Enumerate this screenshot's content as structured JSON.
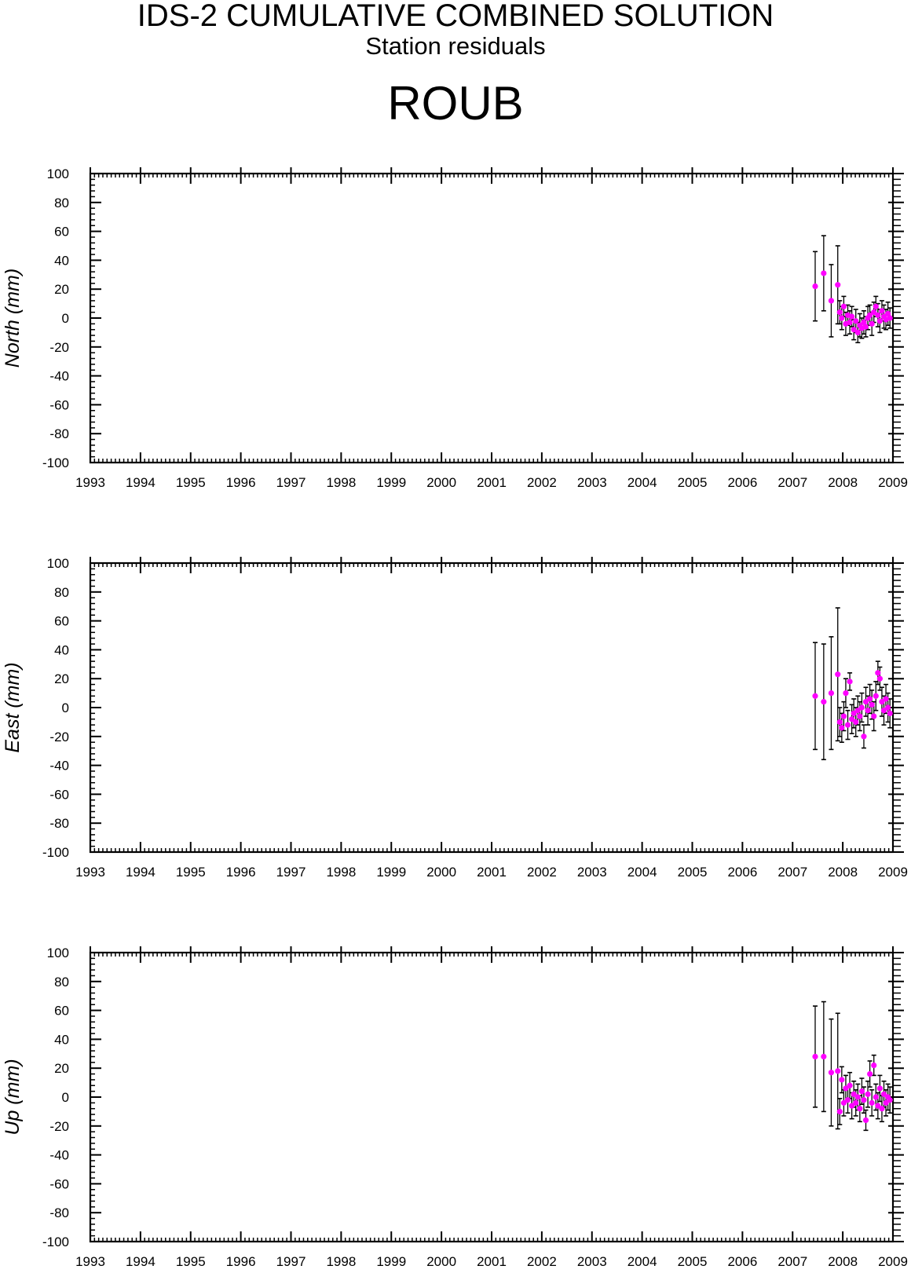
{
  "header": {
    "title": "IDS-2 CUMULATIVE COMBINED SOLUTION",
    "subtitle": "Station residuals",
    "station": "ROUB"
  },
  "colors": {
    "point": "#ff00ff",
    "errorbar": "#000000",
    "axis": "#000000"
  },
  "chart_data": [
    {
      "type": "scatter",
      "name": "north",
      "ylabel": "North (mm)",
      "xlim": [
        1993,
        2009
      ],
      "ylim": [
        -100,
        100
      ],
      "x_ticks": [
        1993,
        1994,
        1995,
        1996,
        1997,
        1998,
        1999,
        2000,
        2001,
        2002,
        2003,
        2004,
        2005,
        2006,
        2007,
        2008,
        2009
      ],
      "y_ticks": [
        -100,
        -80,
        -60,
        -40,
        -20,
        0,
        20,
        40,
        60,
        80,
        100
      ],
      "grid": false,
      "points": [
        {
          "x": 2007.45,
          "y": 22,
          "err": 24
        },
        {
          "x": 2007.62,
          "y": 31,
          "err": 26
        },
        {
          "x": 2007.77,
          "y": 12,
          "err": 25
        },
        {
          "x": 2007.9,
          "y": 23,
          "err": 27
        },
        {
          "x": 2007.94,
          "y": 4,
          "err": 8
        },
        {
          "x": 2007.98,
          "y": 0,
          "err": 8
        },
        {
          "x": 2008.02,
          "y": 8,
          "err": 7
        },
        {
          "x": 2008.06,
          "y": -4,
          "err": 8
        },
        {
          "x": 2008.1,
          "y": 2,
          "err": 7
        },
        {
          "x": 2008.14,
          "y": -3,
          "err": 8
        },
        {
          "x": 2008.18,
          "y": 1,
          "err": 7
        },
        {
          "x": 2008.22,
          "y": -8,
          "err": 7
        },
        {
          "x": 2008.26,
          "y": -2,
          "err": 8
        },
        {
          "x": 2008.3,
          "y": -10,
          "err": 7
        },
        {
          "x": 2008.34,
          "y": -5,
          "err": 8
        },
        {
          "x": 2008.38,
          "y": -7,
          "err": 7
        },
        {
          "x": 2008.42,
          "y": -3,
          "err": 8
        },
        {
          "x": 2008.46,
          "y": -6,
          "err": 7
        },
        {
          "x": 2008.5,
          "y": 0,
          "err": 8
        },
        {
          "x": 2008.54,
          "y": 2,
          "err": 7
        },
        {
          "x": 2008.58,
          "y": -4,
          "err": 8
        },
        {
          "x": 2008.62,
          "y": 4,
          "err": 7
        },
        {
          "x": 2008.66,
          "y": 8,
          "err": 7
        },
        {
          "x": 2008.7,
          "y": 2,
          "err": 8
        },
        {
          "x": 2008.74,
          "y": -2,
          "err": 8
        },
        {
          "x": 2008.78,
          "y": 5,
          "err": 7
        },
        {
          "x": 2008.82,
          "y": 1,
          "err": 8
        },
        {
          "x": 2008.86,
          "y": -1,
          "err": 7
        },
        {
          "x": 2008.9,
          "y": 3,
          "err": 8
        },
        {
          "x": 2008.94,
          "y": 0,
          "err": 7
        }
      ]
    },
    {
      "type": "scatter",
      "name": "east",
      "ylabel": "East (mm)",
      "xlim": [
        1993,
        2009
      ],
      "ylim": [
        -100,
        100
      ],
      "x_ticks": [
        1993,
        1994,
        1995,
        1996,
        1997,
        1998,
        1999,
        2000,
        2001,
        2002,
        2003,
        2004,
        2005,
        2006,
        2007,
        2008,
        2009
      ],
      "y_ticks": [
        -100,
        -80,
        -60,
        -40,
        -20,
        0,
        20,
        40,
        60,
        80,
        100
      ],
      "grid": false,
      "points": [
        {
          "x": 2007.45,
          "y": 8,
          "err": 37
        },
        {
          "x": 2007.62,
          "y": 4,
          "err": 40
        },
        {
          "x": 2007.77,
          "y": 10,
          "err": 39
        },
        {
          "x": 2007.9,
          "y": 23,
          "err": 46
        },
        {
          "x": 2007.94,
          "y": -10,
          "err": 10
        },
        {
          "x": 2007.98,
          "y": -14,
          "err": 10
        },
        {
          "x": 2008.02,
          "y": -6,
          "err": 10
        },
        {
          "x": 2008.06,
          "y": 10,
          "err": 10
        },
        {
          "x": 2008.1,
          "y": -12,
          "err": 10
        },
        {
          "x": 2008.14,
          "y": 18,
          "err": 6
        },
        {
          "x": 2008.18,
          "y": -8,
          "err": 10
        },
        {
          "x": 2008.22,
          "y": -4,
          "err": 10
        },
        {
          "x": 2008.26,
          "y": -10,
          "err": 10
        },
        {
          "x": 2008.3,
          "y": -2,
          "err": 10
        },
        {
          "x": 2008.34,
          "y": -6,
          "err": 10
        },
        {
          "x": 2008.38,
          "y": 0,
          "err": 10
        },
        {
          "x": 2008.42,
          "y": -20,
          "err": 8
        },
        {
          "x": 2008.46,
          "y": 4,
          "err": 10
        },
        {
          "x": 2008.5,
          "y": -2,
          "err": 10
        },
        {
          "x": 2008.54,
          "y": 6,
          "err": 10
        },
        {
          "x": 2008.58,
          "y": 2,
          "err": 10
        },
        {
          "x": 2008.62,
          "y": -6,
          "err": 10
        },
        {
          "x": 2008.66,
          "y": 8,
          "err": 10
        },
        {
          "x": 2008.7,
          "y": 24,
          "err": 8
        },
        {
          "x": 2008.74,
          "y": 20,
          "err": 8
        },
        {
          "x": 2008.78,
          "y": 4,
          "err": 10
        },
        {
          "x": 2008.82,
          "y": -2,
          "err": 10
        },
        {
          "x": 2008.86,
          "y": 6,
          "err": 10
        },
        {
          "x": 2008.9,
          "y": 0,
          "err": 10
        },
        {
          "x": 2008.94,
          "y": -4,
          "err": 10
        }
      ]
    },
    {
      "type": "scatter",
      "name": "up",
      "ylabel": "Up (mm)",
      "xlim": [
        1993,
        2009
      ],
      "ylim": [
        -100,
        100
      ],
      "x_ticks": [
        1993,
        1994,
        1995,
        1996,
        1997,
        1998,
        1999,
        2000,
        2001,
        2002,
        2003,
        2004,
        2005,
        2006,
        2007,
        2008,
        2009
      ],
      "y_ticks": [
        -100,
        -80,
        -60,
        -40,
        -20,
        0,
        20,
        40,
        60,
        80,
        100
      ],
      "grid": false,
      "points": [
        {
          "x": 2007.45,
          "y": 28,
          "err": 35
        },
        {
          "x": 2007.62,
          "y": 28,
          "err": 38
        },
        {
          "x": 2007.77,
          "y": 17,
          "err": 37
        },
        {
          "x": 2007.9,
          "y": 18,
          "err": 40
        },
        {
          "x": 2007.94,
          "y": -10,
          "err": 9
        },
        {
          "x": 2007.98,
          "y": 12,
          "err": 9
        },
        {
          "x": 2008.02,
          "y": -4,
          "err": 9
        },
        {
          "x": 2008.06,
          "y": 6,
          "err": 9
        },
        {
          "x": 2008.1,
          "y": -2,
          "err": 9
        },
        {
          "x": 2008.14,
          "y": 8,
          "err": 9
        },
        {
          "x": 2008.18,
          "y": -6,
          "err": 9
        },
        {
          "x": 2008.22,
          "y": 2,
          "err": 9
        },
        {
          "x": 2008.26,
          "y": -4,
          "err": 9
        },
        {
          "x": 2008.3,
          "y": 0,
          "err": 9
        },
        {
          "x": 2008.34,
          "y": -8,
          "err": 9
        },
        {
          "x": 2008.38,
          "y": 4,
          "err": 9
        },
        {
          "x": 2008.42,
          "y": -2,
          "err": 9
        },
        {
          "x": 2008.46,
          "y": -16,
          "err": 7
        },
        {
          "x": 2008.5,
          "y": 2,
          "err": 9
        },
        {
          "x": 2008.54,
          "y": 16,
          "err": 9
        },
        {
          "x": 2008.58,
          "y": -4,
          "err": 9
        },
        {
          "x": 2008.62,
          "y": 22,
          "err": 7
        },
        {
          "x": 2008.66,
          "y": 0,
          "err": 9
        },
        {
          "x": 2008.7,
          "y": -6,
          "err": 9
        },
        {
          "x": 2008.74,
          "y": 6,
          "err": 9
        },
        {
          "x": 2008.78,
          "y": -8,
          "err": 9
        },
        {
          "x": 2008.82,
          "y": 2,
          "err": 9
        },
        {
          "x": 2008.86,
          "y": -4,
          "err": 9
        },
        {
          "x": 2008.9,
          "y": 0,
          "err": 9
        },
        {
          "x": 2008.94,
          "y": -2,
          "err": 9
        }
      ]
    }
  ]
}
